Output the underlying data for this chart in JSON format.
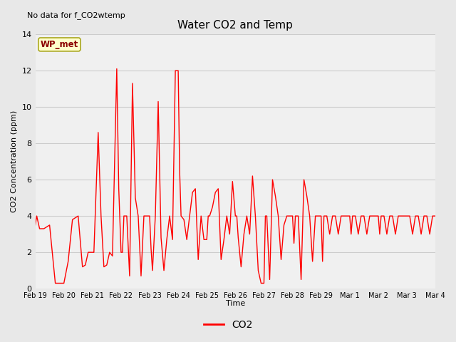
{
  "title": "Water CO2 and Temp",
  "top_left_text": "No data for f_CO2wtemp",
  "ylabel": "CO2 Concentration (ppm)",
  "xlabel": "Time",
  "legend_label": "CO2",
  "line_color": "#ff0000",
  "fig_bg_color": "#e8e8e8",
  "plot_bg_color": "#f0f0f0",
  "ylim": [
    0,
    14
  ],
  "yticks": [
    0,
    2,
    4,
    6,
    8,
    10,
    12,
    14
  ],
  "xtick_labels": [
    "Feb 19",
    "Feb 20",
    "Feb 21",
    "Feb 22",
    "Feb 23",
    "Feb 24",
    "Feb 25",
    "Feb 26",
    "Feb 27",
    "Feb 28",
    "Feb 29",
    "Mar 1",
    "Mar 2",
    "Mar 3",
    "Mar 4"
  ],
  "annotation_box": "WP_met",
  "trace_x": [
    0.0,
    0.05,
    0.15,
    0.3,
    0.5,
    0.7,
    0.9,
    1.0,
    1.15,
    1.3,
    1.5,
    1.65,
    1.75,
    1.85,
    1.95,
    2.05,
    2.2,
    2.3,
    2.4,
    2.5,
    2.6,
    2.7,
    2.85,
    2.92,
    3.0,
    3.05,
    3.1,
    3.2,
    3.3,
    3.4,
    3.5,
    3.6,
    3.7,
    3.8,
    3.9,
    4.0,
    4.05,
    4.1,
    4.2,
    4.3,
    4.4,
    4.5,
    4.6,
    4.7,
    4.8,
    4.9,
    5.0,
    5.05,
    5.1,
    5.2,
    5.3,
    5.4,
    5.5,
    5.6,
    5.7,
    5.8,
    5.9,
    6.0,
    6.05,
    6.1,
    6.2,
    6.3,
    6.4,
    6.5,
    6.6,
    6.7,
    6.8,
    6.9,
    7.0,
    7.05,
    7.1,
    7.2,
    7.3,
    7.4,
    7.5,
    7.6,
    7.7,
    7.8,
    7.9,
    8.0,
    8.05,
    8.1,
    8.2,
    8.3,
    8.4,
    8.5,
    8.6,
    8.7,
    8.8,
    8.9,
    9.0,
    9.05,
    9.1,
    9.2,
    9.3,
    9.4,
    9.5,
    9.6,
    9.7,
    9.8,
    9.9,
    10.0,
    10.05,
    10.1,
    10.2,
    10.3,
    10.4,
    10.5,
    10.6,
    10.7,
    10.8,
    10.9,
    11.0,
    11.05,
    11.1,
    11.2,
    11.3,
    11.4,
    11.5,
    11.6,
    11.7,
    11.8,
    11.9,
    12.0,
    12.05,
    12.1,
    12.2,
    12.3,
    12.4,
    12.5,
    12.6,
    12.7,
    12.8,
    12.9,
    13.0,
    13.1,
    13.2,
    13.3,
    13.4,
    13.5,
    13.6,
    13.7,
    13.8,
    13.9,
    14.0
  ],
  "trace_y": [
    3.5,
    4.0,
    3.3,
    3.3,
    3.5,
    0.3,
    0.3,
    0.3,
    1.5,
    3.8,
    4.0,
    1.2,
    1.3,
    2.0,
    2.0,
    2.0,
    8.6,
    4.0,
    1.2,
    1.3,
    2.0,
    1.8,
    12.1,
    5.5,
    2.0,
    2.0,
    4.0,
    4.0,
    0.7,
    11.3,
    5.0,
    4.0,
    0.7,
    4.0,
    4.0,
    4.0,
    2.2,
    1.0,
    4.0,
    10.3,
    2.8,
    1.0,
    2.7,
    4.0,
    2.7,
    12.0,
    12.0,
    6.5,
    4.0,
    3.8,
    2.7,
    4.0,
    5.3,
    5.5,
    1.6,
    4.0,
    2.7,
    2.7,
    4.0,
    4.0,
    4.5,
    5.3,
    5.5,
    1.6,
    2.7,
    4.0,
    3.0,
    5.9,
    4.0,
    4.0,
    2.8,
    1.2,
    3.0,
    4.0,
    3.0,
    6.2,
    4.0,
    1.0,
    0.3,
    0.3,
    4.0,
    4.0,
    0.5,
    6.0,
    5.1,
    4.0,
    1.6,
    3.5,
    4.0,
    4.0,
    4.0,
    2.5,
    4.0,
    4.0,
    0.5,
    6.0,
    5.1,
    4.0,
    1.5,
    4.0,
    4.0,
    4.0,
    1.5,
    4.0,
    4.0,
    3.0,
    4.0,
    4.0,
    3.0,
    4.0,
    4.0,
    4.0,
    4.0,
    3.0,
    4.0,
    4.0,
    3.0,
    4.0,
    4.0,
    3.0,
    4.0,
    4.0,
    4.0,
    4.0,
    3.0,
    4.0,
    4.0,
    3.0,
    4.0,
    4.0,
    3.0,
    4.0,
    4.0,
    4.0,
    4.0,
    4.0,
    3.0,
    4.0,
    4.0,
    3.0,
    4.0,
    4.0,
    3.0,
    4.0,
    4.0
  ]
}
